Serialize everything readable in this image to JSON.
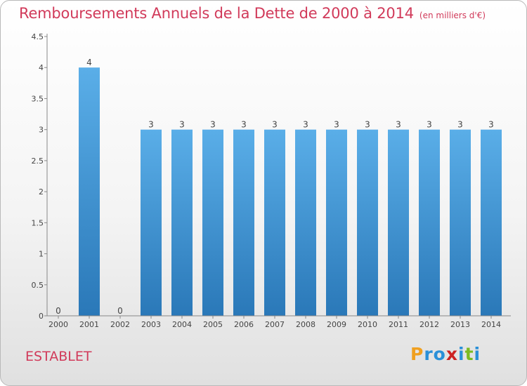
{
  "title": "Remboursements Annuels de la Dette de 2000 à 2014",
  "unit": "(en milliers d'€)",
  "commune": "ESTABLET",
  "logo": {
    "letters": [
      "P",
      "r",
      "o",
      "x",
      "i",
      "t",
      "i"
    ],
    "colors": [
      "#f0a020",
      "#2a90d8",
      "#2a90d8",
      "#cc2222",
      "#2a90d8",
      "#7cbb22",
      "#2a90d8"
    ]
  },
  "colors": {
    "bar_top": "#5aaee8",
    "bar_bottom": "#2a78b8",
    "title": "#d13a5a",
    "axis": "#888888"
  },
  "chart_data": {
    "type": "bar",
    "categories": [
      "2000",
      "2001",
      "2002",
      "2003",
      "2004",
      "2005",
      "2006",
      "2007",
      "2008",
      "2009",
      "2010",
      "2011",
      "2012",
      "2013",
      "2014"
    ],
    "values": [
      0,
      4,
      0,
      3,
      3,
      3,
      3,
      3,
      3,
      3,
      3,
      3,
      3,
      3,
      3
    ],
    "data_labels": [
      "0",
      "4",
      "0",
      "3",
      "3",
      "3",
      "3",
      "3",
      "3",
      "3",
      "3",
      "3",
      "3",
      "3",
      "3"
    ],
    "yticks": [
      0,
      0.5,
      1,
      1.5,
      2,
      2.5,
      3,
      3.5,
      4,
      4.5
    ],
    "ytick_labels": [
      "0",
      "0.5",
      "1",
      "1.5",
      "2",
      "2.5",
      "3",
      "3.5",
      "4",
      "4.5"
    ],
    "ylim": [
      0,
      4.5
    ],
    "title": "Remboursements Annuels de la Dette de 2000 à 2014",
    "xlabel": "",
    "ylabel": "",
    "grid": false,
    "legend": "none"
  }
}
